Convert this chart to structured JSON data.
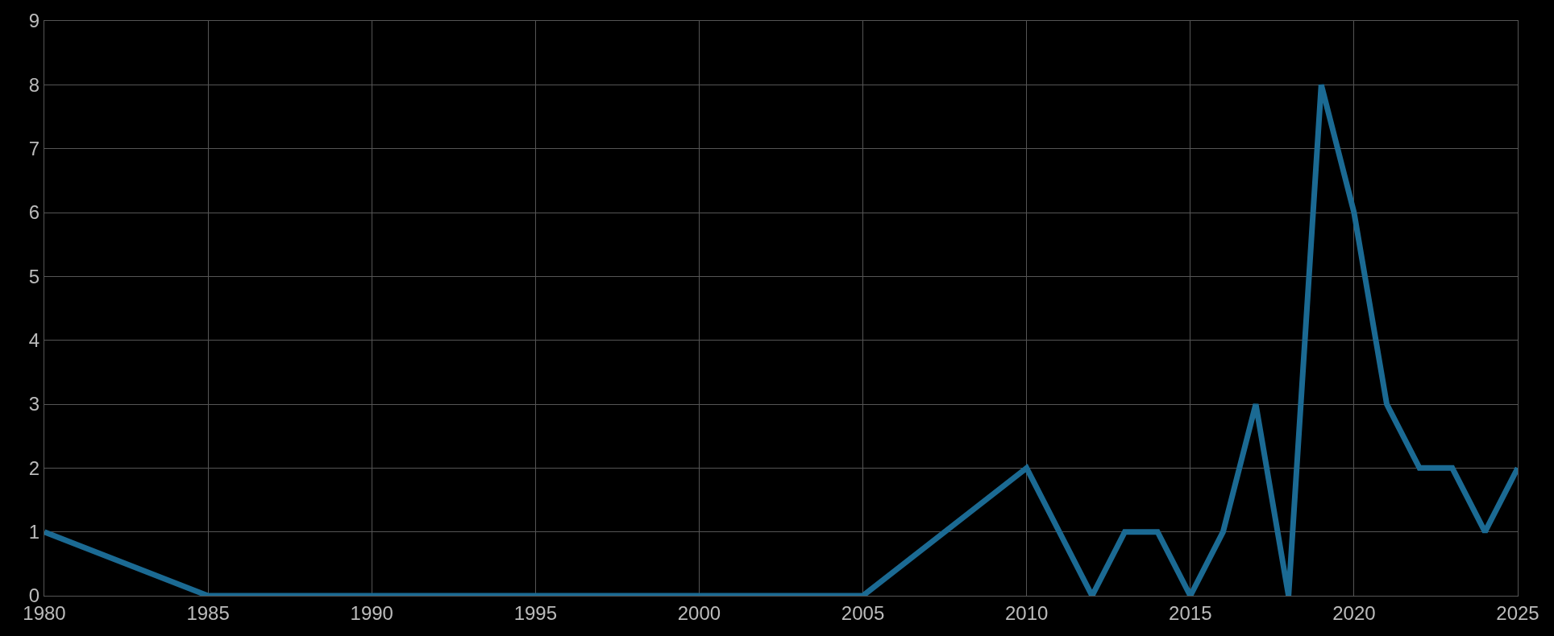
{
  "chart_data": {
    "type": "line",
    "x": [
      1980,
      1985,
      2005,
      2010,
      2012,
      2013,
      2014,
      2015,
      2016,
      2017,
      2018,
      2019,
      2020,
      2021,
      2022,
      2023,
      2024,
      2025
    ],
    "series": [
      {
        "color": "#1b6a93",
        "values": [
          1,
          0,
          0,
          2,
          0,
          1,
          1,
          0,
          1,
          3,
          0,
          8,
          6,
          3,
          2,
          2,
          1,
          2
        ]
      }
    ],
    "xlim": [
      1980,
      2025
    ],
    "xticks": [
      1980,
      1985,
      1990,
      1995,
      2000,
      2005,
      2010,
      2015,
      2020,
      2025
    ],
    "ylim": [
      0,
      9
    ],
    "yticks": [
      0,
      1,
      2,
      3,
      4,
      5,
      6,
      7,
      8,
      9
    ],
    "grid": true,
    "marker": "none",
    "line_style": "solid"
  }
}
